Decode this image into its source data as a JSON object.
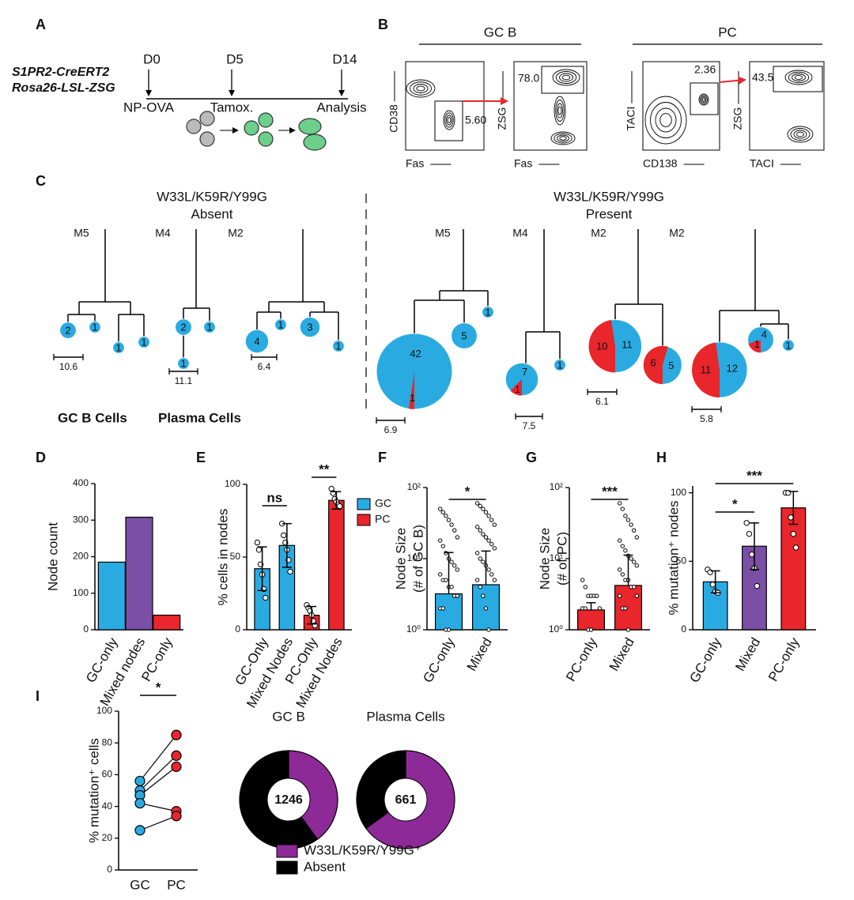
{
  "panels": {
    "A": {
      "label": "A",
      "strains": [
        "S1PR2-CreERT2",
        "Rosa26-LSL-ZSG"
      ],
      "timeline": [
        {
          "day": "D0",
          "event": "NP-OVA"
        },
        {
          "day": "D5",
          "event": "Tamox."
        },
        {
          "day": "D14",
          "event": "Analysis"
        }
      ]
    },
    "B": {
      "label": "B",
      "groups": [
        "GC B",
        "PC"
      ],
      "plots": [
        {
          "y": "CD38",
          "x": "Fas",
          "gate": "5.60"
        },
        {
          "y": "ZSG",
          "x": "Fas",
          "gate": "78.0"
        },
        {
          "y": "TACI",
          "x": "CD138",
          "gate": "2.36"
        },
        {
          "y": "ZSG",
          "x": "TACI",
          "gate": "43.5"
        }
      ]
    },
    "C": {
      "label": "C",
      "legend": [
        "GC B Cells",
        "Plasma Cells"
      ],
      "colors": [
        "#29abe2",
        "#e8262b"
      ],
      "groups": [
        {
          "title": "W33L/K59R/Y99G",
          "subtitle": "Absent",
          "trees": [
            {
              "name": "M5",
              "scale": "10.6",
              "nodes": [
                {
                  "gc": 2
                },
                {
                  "gc": 1
                },
                {
                  "gc": 1
                },
                {
                  "gc": 1
                }
              ]
            },
            {
              "name": "M4",
              "scale": "11.1",
              "nodes": [
                {
                  "gc": 2
                },
                {
                  "gc": 1
                },
                {
                  "gc": 1
                }
              ]
            },
            {
              "name": "M2",
              "scale": "6.4",
              "nodes": [
                {
                  "gc": 4
                },
                {
                  "gc": 1
                },
                {
                  "gc": 3
                },
                {
                  "gc": 1
                }
              ]
            }
          ]
        },
        {
          "title": "W33L/K59R/Y99G",
          "subtitle": "Present",
          "trees": [
            {
              "name": "M5",
              "scale": "6.9",
              "nodes": [
                {
                  "gc": 42,
                  "pc": 1
                },
                {
                  "gc": 5
                },
                {
                  "gc": 1
                }
              ]
            },
            {
              "name": "M4",
              "scale": "7.5",
              "nodes": [
                {
                  "gc": 7,
                  "pc": 1
                },
                {
                  "gc": 1
                }
              ]
            },
            {
              "name": "M2",
              "scale": "6.1",
              "nodes": [
                {
                  "gc": 11,
                  "pc": 10
                },
                {
                  "gc": 5,
                  "pc": 6
                }
              ]
            },
            {
              "name": "M2",
              "scale": "5.8",
              "nodes": [
                {
                  "gc": 12,
                  "pc": 11
                },
                {
                  "gc": 4,
                  "pc": 1
                },
                {
                  "gc": 1
                }
              ]
            }
          ]
        }
      ]
    },
    "I": {
      "legend": [
        {
          "name": "W33L/K59R/Y99G⁺",
          "color": "#8e2a97"
        },
        {
          "name": "Absent",
          "color": "#000000"
        }
      ]
    }
  },
  "chart_data": [
    {
      "panel": "D",
      "type": "bar",
      "ylabel": "Node count",
      "categories": [
        "GC-only",
        "Mixed nodes",
        "PC-only"
      ],
      "values": [
        185,
        308,
        40
      ],
      "colors": [
        "#29abe2",
        "#7b4fa6",
        "#e8262b"
      ],
      "ylim": [
        0,
        400
      ],
      "yticks": [
        0,
        100,
        200,
        300,
        400
      ]
    },
    {
      "panel": "E",
      "type": "bar",
      "ylabel": "% cells in nodes",
      "categories": [
        "GC-Only",
        "Mixed Nodes",
        "PC-Only",
        "Mixed Nodes"
      ],
      "values": [
        42,
        58,
        10,
        89
      ],
      "errors": [
        15,
        15,
        6,
        6
      ],
      "points": [
        [
          60,
          55,
          45,
          38,
          28,
          22
        ],
        [
          73,
          65,
          60,
          55,
          48,
          40
        ],
        [
          17,
          15,
          13,
          10,
          6,
          3
        ],
        [
          97,
          94,
          90,
          88,
          86,
          85
        ]
      ],
      "colors": [
        "#29abe2",
        "#29abe2",
        "#e8262b",
        "#e8262b"
      ],
      "legend": [
        {
          "name": "GC",
          "color": "#29abe2"
        },
        {
          "name": "PC",
          "color": "#e8262b"
        }
      ],
      "annotations": [
        "ns",
        "**"
      ],
      "ylim": [
        0,
        100
      ],
      "yticks": [
        0,
        50,
        100
      ]
    },
    {
      "panel": "F",
      "type": "bar",
      "log": true,
      "ylabel": [
        "Node Size",
        "(# of GC B)"
      ],
      "categories": [
        "GC-only",
        "Mixed"
      ],
      "values": [
        3.2,
        4.3
      ],
      "errors": [
        9,
        8.5
      ],
      "points": [
        [
          50,
          45,
          40,
          35,
          30,
          25,
          20,
          18,
          15,
          12,
          10,
          9,
          8,
          7,
          6,
          5,
          5,
          4,
          4,
          3,
          3,
          2,
          2,
          1,
          1
        ],
        [
          60,
          55,
          50,
          45,
          40,
          35,
          30,
          28,
          25,
          22,
          20,
          18,
          16,
          14,
          12,
          10,
          9,
          8,
          7,
          6,
          5,
          5,
          4,
          3,
          2,
          1
        ]
      ],
      "colors": [
        "#29abe2",
        "#29abe2"
      ],
      "annotations": [
        "*"
      ],
      "ylim": [
        1,
        100
      ],
      "yticks": [
        {
          "value": 1,
          "label": "10⁰"
        },
        {
          "value": 10,
          "label": "10¹"
        },
        {
          "value": 100,
          "label": "10²"
        }
      ]
    },
    {
      "panel": "G",
      "type": "bar",
      "log": true,
      "ylabel": [
        "Node Size",
        "(# of PC)"
      ],
      "categories": [
        "PC-only",
        "Mixed"
      ],
      "values": [
        1.9,
        4.2
      ],
      "errors": [
        0.5,
        7
      ],
      "points": [
        [
          5,
          4,
          3,
          3,
          3,
          3,
          2,
          2,
          2,
          1,
          1
        ],
        [
          60,
          50,
          40,
          35,
          30,
          25,
          20,
          18,
          15,
          13,
          11,
          10,
          9,
          8,
          7,
          6,
          5,
          5,
          4,
          4,
          3,
          3,
          2,
          2,
          1
        ]
      ],
      "colors": [
        "#e8262b",
        "#e8262b"
      ],
      "annotations": [
        "***"
      ],
      "ylim": [
        1,
        100
      ],
      "yticks": [
        {
          "value": 1,
          "label": "10⁰"
        },
        {
          "value": 10,
          "label": "10¹"
        },
        {
          "value": 100,
          "label": "10²"
        }
      ]
    },
    {
      "panel": "H",
      "type": "bar",
      "ylabel": "% mutation⁺ nodes",
      "categories": [
        "GC-only",
        "Mixed",
        "PC-only"
      ],
      "values": [
        35,
        61,
        89
      ],
      "errors": [
        8,
        17,
        12
      ],
      "points": [
        [
          44,
          42,
          33,
          28,
          27
        ],
        [
          78,
          70,
          55,
          45,
          32
        ],
        [
          100,
          100,
          82,
          70,
          60
        ]
      ],
      "colors": [
        "#29abe2",
        "#7b4fa6",
        "#e8262b"
      ],
      "annotations": [
        "*",
        "***"
      ],
      "ylim": [
        0,
        105
      ],
      "yticks": [
        0,
        50,
        100
      ]
    },
    {
      "panel": "I",
      "type": "paired",
      "ylabel": "% mutation⁺ cells",
      "categories": [
        "GC",
        "PC"
      ],
      "values": [
        [
          56,
          50,
          47,
          42,
          25
        ],
        [
          85,
          72,
          65,
          37,
          34
        ]
      ],
      "colors": [
        "#29abe2",
        "#e8262b"
      ],
      "annotations": [
        "*"
      ],
      "ylim": [
        0,
        100
      ],
      "yticks": [
        0,
        20,
        40,
        60,
        80,
        100
      ]
    },
    {
      "type": "donut",
      "title": "GC B",
      "total": 1246,
      "values": [
        40,
        60
      ],
      "colors": [
        "#8e2a97",
        "#000000"
      ]
    },
    {
      "type": "donut",
      "title": "Plasma Cells",
      "total": 661,
      "values": [
        65,
        35
      ],
      "colors": [
        "#8e2a97",
        "#000000"
      ]
    }
  ]
}
